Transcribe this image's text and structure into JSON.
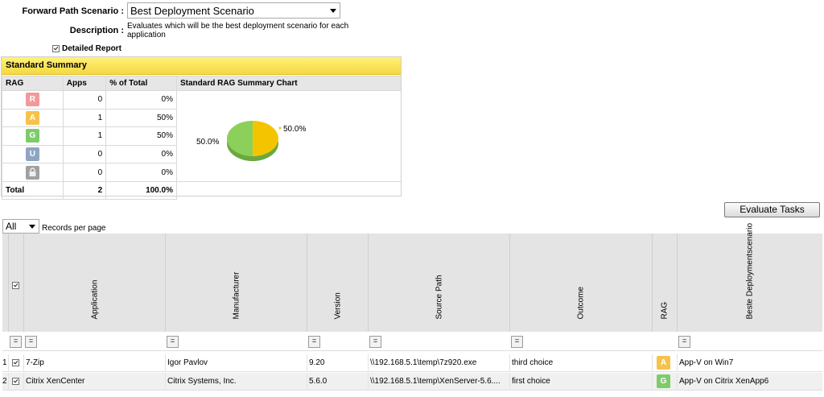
{
  "header": {
    "scenario_label": "Forward Path Scenario :",
    "scenario_value": "Best Deployment Scenario",
    "description_label": "Description :",
    "description_text": "Evaluates which will be the best deployment scenario for each application",
    "detailed_report_label": "Detailed Report",
    "detailed_report_checked": true
  },
  "summary": {
    "title": "Standard Summary",
    "columns": [
      "RAG",
      "Apps",
      "% of Total",
      "Standard RAG Summary Chart"
    ],
    "rows": [
      {
        "rag": "R",
        "color": "#f29a9a",
        "apps": "0",
        "pct": "0%"
      },
      {
        "rag": "A",
        "color": "#f7c24a",
        "apps": "1",
        "pct": "50%"
      },
      {
        "rag": "G",
        "color": "#7ecb6a",
        "apps": "1",
        "pct": "50%"
      },
      {
        "rag": "U",
        "color": "#8fa6c2",
        "apps": "0",
        "pct": "0%"
      },
      {
        "rag": "lock",
        "color": "#a0a0a0",
        "apps": "0",
        "pct": "0%"
      }
    ],
    "total_label": "Total",
    "total_apps": "2",
    "total_pct": "100.0%"
  },
  "chart_data": {
    "type": "pie",
    "title": "",
    "slices": [
      {
        "label": "50.0%",
        "value": 50,
        "color": "#f5c400"
      },
      {
        "label": "50.0%",
        "value": 50,
        "color": "#8ccf5a"
      }
    ]
  },
  "toolbar": {
    "evaluate_label": "Evaluate Tasks",
    "records_value": "All",
    "records_label": "Records per page"
  },
  "grid": {
    "columns": [
      "Application",
      "Manufacturer",
      "Version",
      "Source Path",
      "Outcome",
      "RAG",
      "Beste Deploymentscenario"
    ],
    "filter_symbol": "=",
    "rows": [
      {
        "num": "1",
        "application": "7-Zip",
        "manufacturer": "Igor Pavlov",
        "version": "9.20",
        "source": "\\\\192.168.5.1\\temp\\7z920.exe",
        "outcome": "third choice",
        "rag": "A",
        "rag_color": "#f7c24a",
        "scenario": "App-V on Win7"
      },
      {
        "num": "2",
        "application": "Citrix XenCenter",
        "manufacturer": "Citrix Systems, Inc.",
        "version": "5.6.0",
        "source": "\\\\192.168.5.1\\temp\\XenServer-5.6....",
        "outcome": "first choice",
        "rag": "G",
        "rag_color": "#7ecb6a",
        "scenario": "App-V on Citrix XenApp6"
      }
    ]
  }
}
